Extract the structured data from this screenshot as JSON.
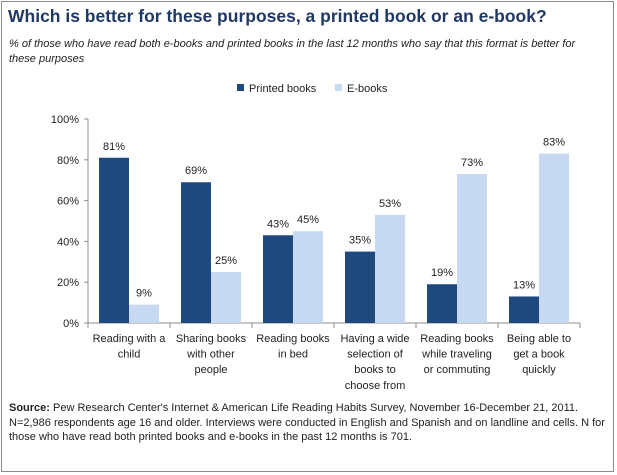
{
  "chart_data": {
    "type": "bar",
    "title": "Which is better for these purposes, a printed book or an e-book?",
    "subtitle": "% of those who have read both e-books and printed books in the last 12 months who say that this format is better for these purposes",
    "categories": [
      [
        "Reading with a",
        "child"
      ],
      [
        "Sharing books",
        "with other",
        "people"
      ],
      [
        "Reading books",
        "in bed"
      ],
      [
        "Having a wide",
        "selection of",
        "books to",
        "choose from"
      ],
      [
        "Reading books",
        "while traveling",
        "or commuting"
      ],
      [
        "Being able to",
        "get a book",
        "quickly"
      ]
    ],
    "series": [
      {
        "name": "Printed books",
        "color": "#1f497d",
        "values": [
          81,
          69,
          43,
          35,
          19,
          13
        ]
      },
      {
        "name": "E-books",
        "color": "#c6d9f1",
        "values": [
          9,
          25,
          45,
          53,
          73,
          83
        ]
      }
    ],
    "ylim": [
      0,
      100
    ],
    "yticks": [
      0,
      20,
      40,
      60,
      80,
      100
    ],
    "ytick_labels": [
      "0%",
      "20%",
      "40%",
      "60%",
      "80%",
      "100%"
    ],
    "value_suffix": "%",
    "legend_position": "top-center",
    "grid": false
  },
  "source_label": "Source:",
  "source_text": "Pew Research Center's Internet & American Life Reading Habits Survey, November 16-December 21, 2011. N=2,986 respondents age 16 and older. Interviews were conducted in English and Spanish and on landline and cells. N for those who have read both printed books and e-books in the past 12 months is 701."
}
